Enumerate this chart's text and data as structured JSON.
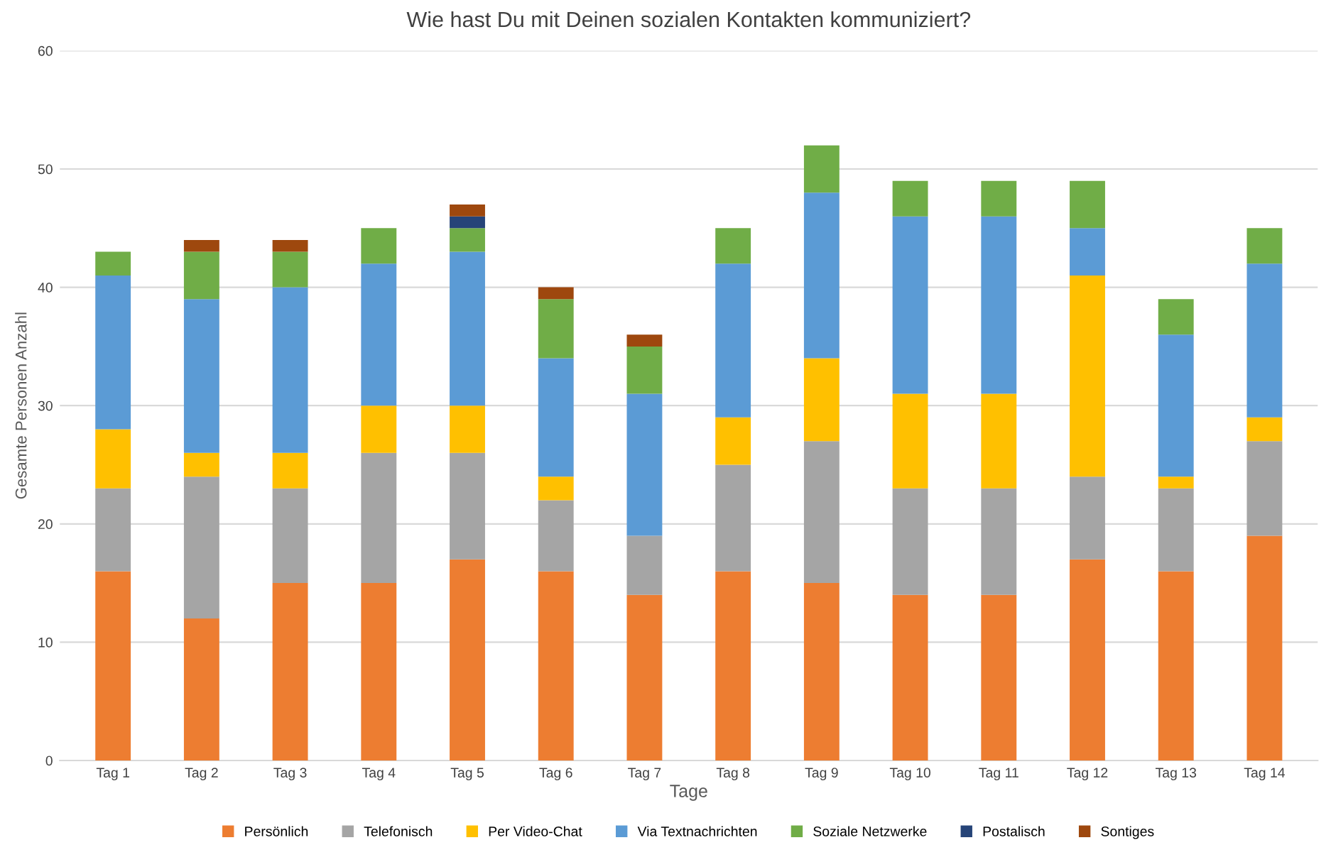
{
  "chart_data": {
    "type": "bar",
    "stacked": true,
    "title": "Wie hast Du mit Deinen sozialen Kontakten kommuniziert?",
    "xlabel": "Tage",
    "ylabel": "Gesamte Personen Anzahl",
    "categories": [
      "Tag 1",
      "Tag 2",
      "Tag 3",
      "Tag 4",
      "Tag 5",
      "Tag 6",
      "Tag 7",
      "Tag 8",
      "Tag 9",
      "Tag 10",
      "Tag 11",
      "Tag 12",
      "Tag 13",
      "Tag 14"
    ],
    "series": [
      {
        "name": "Persönlich",
        "color": "#ed7d31",
        "values": [
          16,
          12,
          15,
          15,
          17,
          16,
          14,
          16,
          15,
          14,
          14,
          17,
          16,
          19
        ]
      },
      {
        "name": "Telefonisch",
        "color": "#a5a5a5",
        "values": [
          7,
          12,
          8,
          11,
          9,
          6,
          5,
          9,
          12,
          9,
          9,
          7,
          7,
          8
        ]
      },
      {
        "name": "Per Video-Chat",
        "color": "#ffc000",
        "values": [
          5,
          2,
          3,
          4,
          4,
          2,
          0,
          4,
          7,
          8,
          8,
          17,
          1,
          2
        ]
      },
      {
        "name": "Via Textnachrichten",
        "color": "#5b9bd5",
        "values": [
          13,
          13,
          14,
          12,
          13,
          10,
          12,
          13,
          14,
          15,
          15,
          4,
          12,
          13
        ]
      },
      {
        "name": "Soziale Netzwerke",
        "color": "#70ad47",
        "values": [
          2,
          4,
          3,
          3,
          2,
          5,
          4,
          3,
          4,
          3,
          3,
          4,
          3,
          3
        ]
      },
      {
        "name": "Postalisch",
        "color": "#264478",
        "values": [
          0,
          0,
          0,
          0,
          1,
          0,
          0,
          0,
          0,
          0,
          0,
          0,
          0,
          0
        ]
      },
      {
        "name": "Sontiges",
        "color": "#9e480e",
        "values": [
          0,
          1,
          1,
          0,
          1,
          1,
          1,
          0,
          0,
          0,
          0,
          0,
          0,
          0
        ]
      }
    ],
    "ylim": [
      0,
      60
    ],
    "yticks": [
      0,
      10,
      20,
      30,
      40,
      50,
      60
    ],
    "grid": "y",
    "legend": "bottom"
  }
}
